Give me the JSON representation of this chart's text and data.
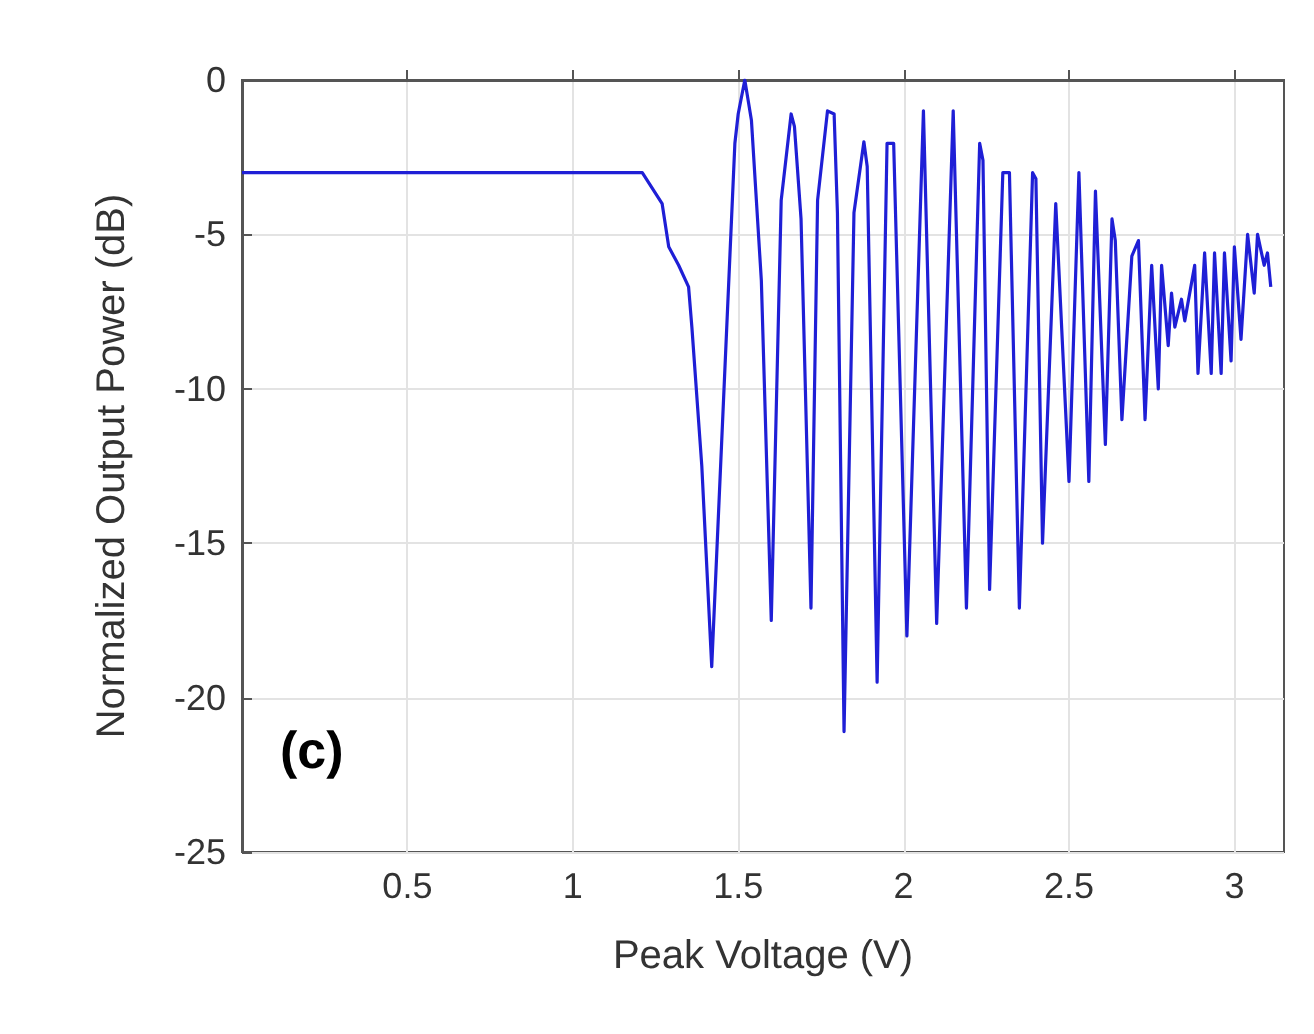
{
  "chart_data": {
    "type": "line",
    "xlabel": "Peak Voltage (V)",
    "ylabel": "Normalized Output Power (dB)",
    "annotations": [
      "(c)"
    ],
    "xlim": [
      0,
      3.15
    ],
    "xticks": [
      0.5,
      1,
      1.5,
      2,
      2.5,
      3
    ],
    "ylim": [
      -25,
      0
    ],
    "yticks": [
      -25,
      -20,
      -15,
      -10,
      -5,
      0
    ],
    "grid": true,
    "marker": "none",
    "line_style": "solid",
    "series": [
      {
        "color": "#1f1fd6",
        "x": [
          0,
          1.21,
          1.27,
          1.29,
          1.32,
          1.35,
          1.36,
          1.39,
          1.42,
          1.49,
          1.5,
          1.52,
          1.54,
          1.57,
          1.6,
          1.63,
          1.66,
          1.67,
          1.69,
          1.72,
          1.74,
          1.77,
          1.79,
          1.8,
          1.82,
          1.85,
          1.88,
          1.89,
          1.92,
          1.95,
          1.97,
          2.01,
          2.06,
          2.1,
          2.15,
          2.19,
          2.23,
          2.24,
          2.26,
          2.3,
          2.32,
          2.35,
          2.39,
          2.4,
          2.42,
          2.46,
          2.5,
          2.53,
          2.56,
          2.58,
          2.61,
          2.63,
          2.64,
          2.66,
          2.69,
          2.71,
          2.73,
          2.75,
          2.77,
          2.78,
          2.8,
          2.81,
          2.82,
          2.84,
          2.85,
          2.88,
          2.89,
          2.91,
          2.93,
          2.94,
          2.96,
          2.97,
          2.99,
          3.0,
          3.02,
          3.04,
          3.06,
          3.07,
          3.09,
          3.1,
          3.11
        ],
        "values": [
          -3,
          -3,
          -4,
          -5.4,
          -6,
          -6.7,
          -8,
          -12.5,
          -19,
          -2.05,
          -1.1,
          0,
          -1.3,
          -6.5,
          -17.5,
          -3.9,
          -1.1,
          -1.5,
          -4.5,
          -17.1,
          -3.9,
          -1,
          -1.1,
          -4.3,
          -21.1,
          -4.3,
          -2,
          -2.8,
          -19.5,
          -2.05,
          -2.05,
          -18,
          -1,
          -17.6,
          -1,
          -17.1,
          -2.05,
          -2.6,
          -16.5,
          -3,
          -3,
          -17.1,
          -3,
          -3.2,
          -15,
          -4,
          -13,
          -3,
          -13,
          -3.6,
          -11.8,
          -4.5,
          -5.2,
          -11,
          -5.7,
          -5.2,
          -11,
          -6,
          -10,
          -6,
          -8.6,
          -6.9,
          -8,
          -7.1,
          -7.8,
          -6,
          -9.5,
          -5.6,
          -9.5,
          -5.6,
          -9.5,
          -5.6,
          -9.1,
          -5.4,
          -8.4,
          -5,
          -6.9,
          -5,
          -6,
          -5.6,
          -6.7
        ]
      }
    ]
  }
}
